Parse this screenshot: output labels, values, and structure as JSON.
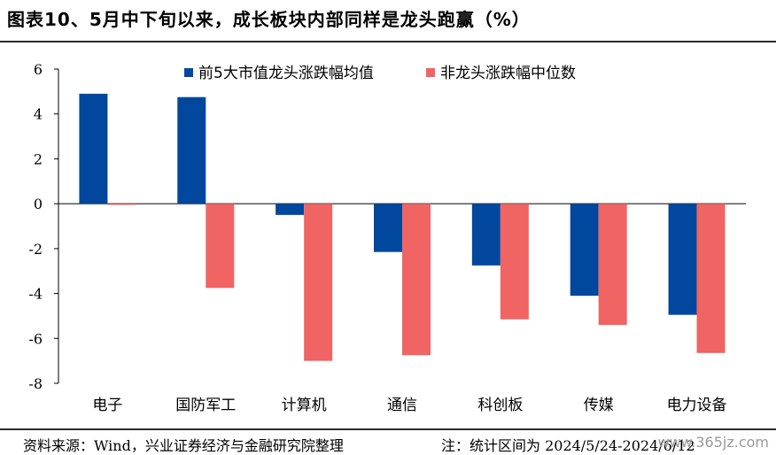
{
  "header": {
    "title": "图表10、5月中下旬以来，成长板块内部同样是龙头跑赢（%）"
  },
  "footer": {
    "source": "资料来源：Wind，兴业证券经济与金融研究院整理",
    "note": "注：统计区间为 2024/5/24-2024/6/12",
    "watermark": "www.365jz.com"
  },
  "chart_data": {
    "type": "bar",
    "categories": [
      "电子",
      "国防军工",
      "计算机",
      "通信",
      "科创板",
      "传媒",
      "电力设备"
    ],
    "series": [
      {
        "name": "前5大市值龙头涨跌幅均值",
        "color": "#00479D",
        "values": [
          4.9,
          4.75,
          -0.5,
          -2.15,
          -2.75,
          -4.1,
          -4.95
        ]
      },
      {
        "name": "非龙头涨跌幅中位数",
        "color": "#F06464",
        "values": [
          -0.05,
          -3.75,
          -7.0,
          -6.75,
          -5.15,
          -5.4,
          -6.65
        ]
      }
    ],
    "ylim": [
      -8,
      6
    ],
    "yticks": [
      "-8",
      "-6",
      "-4",
      "-2",
      "0",
      "2",
      "4",
      "6"
    ],
    "legend_position": "top",
    "grid": false
  }
}
